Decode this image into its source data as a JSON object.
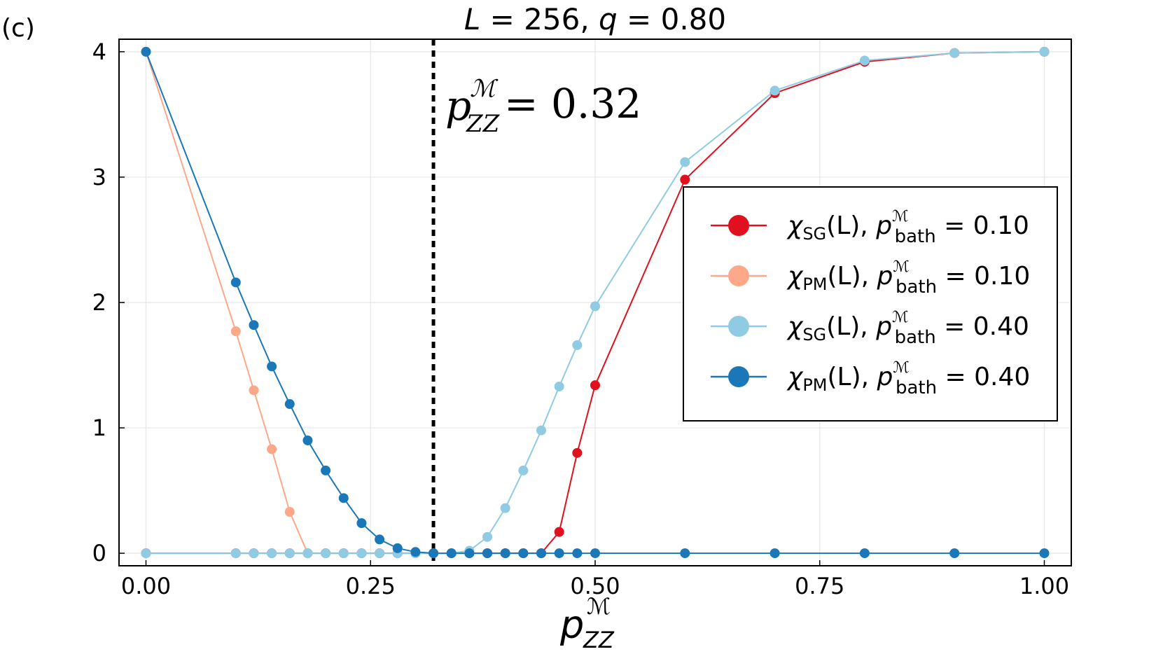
{
  "panel_label": "(c)",
  "title": {
    "prefix_var": "L",
    "eq1": " = 256, ",
    "q_var": "q",
    "eq2": " = 0.80"
  },
  "annotation": {
    "p": "p",
    "sup": "ℳ",
    "sub": "ZZ",
    "value": " = 0.32"
  },
  "xlabel": {
    "p": "p",
    "sup": "ℳ",
    "sub": "ZZ"
  },
  "colors": {
    "sg_010": "#e0101e",
    "pm_010": "#fca889",
    "sg_040": "#8fcce4",
    "pm_040": "#1a78b8"
  },
  "chart_data": {
    "type": "line",
    "title": "L = 256, q = 0.80",
    "xlabel": "p_ZZ^M",
    "ylabel": "",
    "xlim": [
      -0.03,
      1.03
    ],
    "ylim": [
      -0.1,
      4.1
    ],
    "xticks": [
      "0.00",
      "0.25",
      "0.50",
      "0.75",
      "1.00"
    ],
    "xtick_values": [
      0.0,
      0.25,
      0.5,
      0.75,
      1.0
    ],
    "yticks": [
      "0",
      "1",
      "2",
      "3",
      "4"
    ],
    "ytick_values": [
      0,
      1,
      2,
      3,
      4
    ],
    "grid": true,
    "vline": {
      "x": 0.32,
      "style": "dotted",
      "color": "#000000"
    },
    "legend_position": "center-right",
    "series": [
      {
        "id": "sg_010",
        "name": "χSG(L), p_bath^M = 0.10",
        "legend": {
          "chi": "χ",
          "sub": "SG",
          "L": "(L), ",
          "p": "p",
          "sup": "ℳ",
          "psub": "bath",
          "value": " = 0.10"
        },
        "x": [
          0.0,
          0.1,
          0.12,
          0.14,
          0.16,
          0.18,
          0.2,
          0.22,
          0.24,
          0.26,
          0.28,
          0.3,
          0.32,
          0.34,
          0.36,
          0.38,
          0.4,
          0.42,
          0.44,
          0.46,
          0.48,
          0.5,
          0.6,
          0.7,
          0.8,
          0.9,
          1.0
        ],
        "y": [
          0.0,
          0.0,
          0.0,
          0.0,
          0.0,
          0.0,
          0.0,
          0.0,
          0.0,
          0.0,
          0.0,
          0.0,
          0.0,
          0.0,
          0.0,
          0.0,
          0.0,
          0.0,
          0.0,
          0.17,
          0.8,
          1.34,
          2.98,
          3.67,
          3.92,
          3.99,
          4.0
        ]
      },
      {
        "id": "pm_010",
        "name": "χPM(L), p_bath^M = 0.10",
        "legend": {
          "chi": "χ",
          "sub": "PM",
          "L": "(L), ",
          "p": "p",
          "sup": "ℳ",
          "psub": "bath",
          "value": " = 0.10"
        },
        "x": [
          0.0,
          0.1,
          0.12,
          0.14,
          0.16,
          0.18
        ],
        "y": [
          4.0,
          1.77,
          1.3,
          0.83,
          0.33,
          0.0
        ]
      },
      {
        "id": "sg_040",
        "name": "χSG(L), p_bath^M = 0.40",
        "legend": {
          "chi": "χ",
          "sub": "SG",
          "L": "(L), ",
          "p": "p",
          "sup": "ℳ",
          "psub": "bath",
          "value": " = 0.40"
        },
        "x": [
          0.0,
          0.1,
          0.12,
          0.14,
          0.16,
          0.18,
          0.2,
          0.22,
          0.24,
          0.26,
          0.28,
          0.3,
          0.32,
          0.34,
          0.36,
          0.38,
          0.4,
          0.42,
          0.44,
          0.46,
          0.48,
          0.5,
          0.6,
          0.7,
          0.8,
          0.9,
          1.0
        ],
        "y": [
          0.0,
          0.0,
          0.0,
          0.0,
          0.0,
          0.0,
          0.0,
          0.0,
          0.0,
          0.0,
          0.0,
          0.0,
          0.0,
          0.0,
          0.02,
          0.13,
          0.36,
          0.66,
          0.98,
          1.33,
          1.66,
          1.97,
          3.12,
          3.69,
          3.93,
          3.99,
          4.0
        ]
      },
      {
        "id": "pm_040",
        "name": "χPM(L), p_bath^M = 0.40",
        "legend": {
          "chi": "χ",
          "sub": "PM",
          "L": "(L), ",
          "p": "p",
          "sup": "ℳ",
          "psub": "bath",
          "value": " = 0.40"
        },
        "x": [
          0.0,
          0.1,
          0.12,
          0.14,
          0.16,
          0.18,
          0.2,
          0.22,
          0.24,
          0.26,
          0.28,
          0.3,
          0.32,
          0.34,
          0.36,
          0.38,
          0.4,
          0.42,
          0.44,
          0.46,
          0.48,
          0.5,
          0.6,
          0.7,
          0.8,
          0.9,
          1.0
        ],
        "y": [
          4.0,
          2.16,
          1.82,
          1.49,
          1.19,
          0.9,
          0.66,
          0.44,
          0.24,
          0.11,
          0.04,
          0.01,
          0.0,
          0.0,
          0.0,
          0.0,
          0.0,
          0.0,
          0.0,
          0.0,
          0.0,
          0.0,
          0.0,
          0.0,
          0.0,
          0.0,
          0.0
        ]
      }
    ]
  }
}
